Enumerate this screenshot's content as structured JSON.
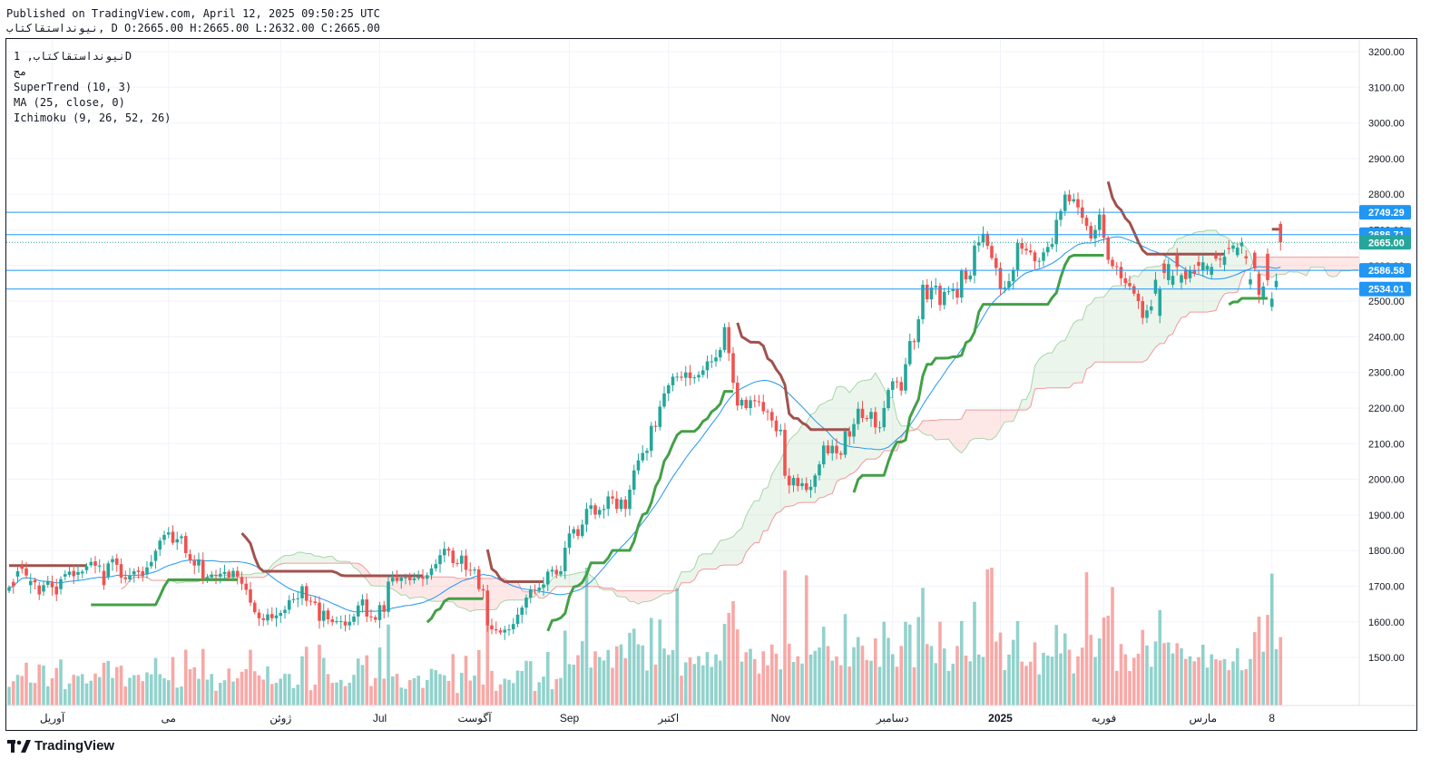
{
  "header": {
    "published_line": "Published on TradingView.com, April 12, 2025 09:50:25 UTC",
    "ohlc_line": "نیونداستقاکتاب, D O:2665.00 H:2665.00 L:2632.00 C:2665.00"
  },
  "legend": {
    "symbol_line": "نیونداستقاکتاب, 1D",
    "exchange": "مج",
    "indicator_1": "SuperTrend (10, 3)",
    "indicator_2": "MA (25, close, 0)",
    "indicator_3": "Ichimoku (9, 26, 52, 26)"
  },
  "brand": {
    "name": "TradingView"
  },
  "colors": {
    "up": "#26a69a",
    "down": "#ef5350",
    "supertrend_up": "#43a047",
    "supertrend_down": "#a0524e",
    "ma": "#2196f3",
    "hline": "#2196f3",
    "price_badge": "#26a69a"
  },
  "chart_data": {
    "type": "candlestick",
    "y_axis": {
      "range": [
        1400,
        3260
      ],
      "ticks": [
        1500,
        1600,
        1700,
        1800,
        1900,
        2000,
        2100,
        2200,
        2300,
        2400,
        2500,
        2600,
        2700,
        2800,
        2900,
        3000,
        3100,
        3200
      ],
      "tick_labels": [
        "1500.00",
        "1600.00",
        "1700.00",
        "1800.00",
        "1900.00",
        "2000.00",
        "2100.00",
        "2200.00",
        "2300.00",
        "2400.00",
        "2500.00",
        "2600.00",
        "2700.00",
        "2800.00",
        "2900.00",
        "3000.00",
        "3100.00",
        "3200.00"
      ]
    },
    "x_axis": {
      "labels": [
        "آوریل",
        "می",
        "ژوئن",
        "Jul",
        "آگوست",
        "Sep",
        "اکتبر",
        "Nov",
        "دسامبر",
        "2025",
        "فوریه",
        "مارس",
        "8"
      ],
      "label_index": [
        10,
        37,
        63,
        86,
        108,
        130,
        153,
        179,
        205,
        230,
        254,
        277,
        293
      ]
    },
    "horizontal_lines": [
      2749.29,
      2686.71,
      2586.58,
      2534.01
    ],
    "price_labels": [
      {
        "value": 2749.29,
        "text": "2749.29",
        "kind": "line"
      },
      {
        "value": 2686.71,
        "text": "2686.71",
        "kind": "line"
      },
      {
        "value": 2665.0,
        "text": "2665.00",
        "kind": "last"
      },
      {
        "value": 2586.58,
        "text": "2586.58",
        "kind": "line"
      },
      {
        "value": 2534.01,
        "text": "2534.01",
        "kind": "line"
      }
    ],
    "last_price": 2665.0,
    "bars": 300,
    "closes": [
      1697,
      1700,
      1742,
      1749,
      1730,
      1715,
      1711,
      1677,
      1703,
      1713,
      1697,
      1677,
      1720,
      1734,
      1741,
      1728,
      1740,
      1741,
      1756,
      1768,
      1757,
      1758,
      1703,
      1764,
      1776,
      1760,
      1724,
      1720,
      1730,
      1742,
      1740,
      1728,
      1753,
      1768,
      1799,
      1828,
      1844,
      1851,
      1822,
      1832,
      1840,
      1793,
      1773,
      1758,
      1775,
      1722,
      1726,
      1732,
      1729,
      1735,
      1740,
      1725,
      1743,
      1727,
      1707,
      1690,
      1654,
      1627,
      1610,
      1605,
      1621,
      1610,
      1618,
      1625,
      1634,
      1661,
      1664,
      1666,
      1700,
      1659,
      1657,
      1653,
      1603,
      1631,
      1607,
      1599,
      1602,
      1602,
      1590,
      1600,
      1615,
      1646,
      1663,
      1615,
      1613,
      1606,
      1647,
      1628,
      1713,
      1724,
      1715,
      1724,
      1725,
      1717,
      1722,
      1725,
      1721,
      1731,
      1750,
      1762,
      1787,
      1805,
      1800,
      1765,
      1763,
      1786,
      1746,
      1744,
      1747,
      1692,
      1688,
      1590,
      1579,
      1576,
      1570,
      1578,
      1579,
      1594,
      1620,
      1640,
      1668,
      1690,
      1689,
      1696,
      1705,
      1741,
      1746,
      1733,
      1742,
      1808,
      1848,
      1860,
      1841,
      1873,
      1917,
      1927,
      1901,
      1914,
      1917,
      1952,
      1946,
      1917,
      1943,
      1917,
      1971,
      2025,
      2053,
      2074,
      2080,
      2150,
      2147,
      2204,
      2241,
      2264,
      2288,
      2288,
      2285,
      2300,
      2284,
      2286,
      2293,
      2306,
      2331,
      2331,
      2342,
      2363,
      2427,
      2354,
      2271,
      2207,
      2223,
      2200,
      2222,
      2219,
      2217,
      2191,
      2189,
      2165,
      2135,
      2139,
      2010,
      1983,
      2004,
      1981,
      1989,
      1970,
      1979,
      2011,
      2042,
      2095,
      2073,
      2094,
      2073,
      2069,
      2135,
      2120,
      2155,
      2198,
      2172,
      2170,
      2189,
      2146,
      2146,
      2200,
      2251,
      2275,
      2273,
      2249,
      2323,
      2388,
      2385,
      2449,
      2546,
      2505,
      2538,
      2543,
      2489,
      2526,
      2528,
      2534,
      2510,
      2585,
      2561,
      2572,
      2656,
      2665,
      2689,
      2655,
      2621,
      2593,
      2535,
      2538,
      2556,
      2588,
      2663,
      2647,
      2642,
      2637,
      2612,
      2613,
      2637,
      2652,
      2660,
      2728,
      2753,
      2799,
      2780,
      2786,
      2763,
      2734,
      2711,
      2676,
      2700,
      2743,
      2678,
      2616,
      2598,
      2596,
      2564,
      2551,
      2542,
      2521,
      2500,
      2453,
      2474,
      2485,
      2560,
      2534,
      2579,
      2604,
      2571,
      2596,
      2573,
      2562,
      2587,
      2577,
      2599,
      2609,
      2599,
      2596,
      2619,
      2616,
      2625,
      2646,
      2656,
      2650,
      2664,
      2620,
      2561,
      2592,
      2518,
      2541,
      2559,
      2507,
      2557,
      2665
    ],
    "open_offsets": [
      -10,
      12,
      -15,
      8,
      20,
      -12,
      6,
      25,
      -18,
      -9,
      14,
      22,
      -28,
      -7,
      -9,
      15,
      -8,
      -5,
      -11,
      -9,
      13,
      -3,
      40,
      -37,
      -9,
      18,
      38,
      5,
      -11,
      -9,
      4,
      14,
      -20,
      -12,
      -28,
      -25,
      -14,
      -6,
      31,
      -9,
      -5,
      48,
      17,
      14,
      -17,
      51,
      -5,
      -7,
      3,
      -8,
      -6,
      16,
      -17,
      16,
      19,
      17,
      37,
      27,
      16,
      5,
      -17,
      12,
      -8,
      -8,
      -9,
      -27,
      -3,
      -2,
      -34,
      41,
      2,
      4,
      51,
      -28,
      25,
      8,
      -3,
      -1,
      11,
      -10,
      -15,
      -31,
      -17,
      48,
      2,
      7,
      -42,
      19,
      -85,
      -11,
      9,
      -9,
      -2,
      8,
      -5,
      -3,
      5,
      -10,
      -19,
      -12,
      -25,
      -18,
      5,
      35,
      2,
      -23,
      40,
      2,
      -3,
      55,
      4,
      98,
      11,
      3,
      6,
      -8,
      -1,
      -15,
      -26,
      -20,
      -28,
      -22,
      1,
      -7,
      -9,
      -36,
      -5,
      13,
      -9,
      -66,
      -40,
      -12,
      19,
      -32,
      -44,
      -10,
      26,
      -13,
      -3,
      -35,
      6,
      29,
      -26,
      26,
      -54,
      -54,
      -28,
      -21,
      -6,
      -70,
      3,
      -57,
      -37,
      -23,
      -24,
      0,
      3,
      -15,
      16,
      -2,
      -7,
      -13,
      -25,
      0,
      -11,
      -21,
      -64,
      73,
      83,
      64,
      -16,
      23,
      -22,
      3,
      2,
      26,
      2,
      24,
      30,
      -4,
      129,
      27,
      -21,
      23,
      -8,
      19,
      -9,
      -32,
      -31,
      -53,
      22,
      -21,
      21,
      4,
      -66,
      15,
      -35,
      -43,
      26,
      2,
      -19,
      43,
      0,
      -54,
      -51,
      -24,
      2,
      24,
      -74,
      -65,
      3,
      -64,
      -97,
      41,
      -33,
      -5,
      54,
      -37,
      -2,
      -6,
      24,
      -75,
      24,
      -11,
      -84,
      -9,
      -24,
      34,
      34,
      28,
      58,
      -3,
      -18,
      -32,
      -75,
      16,
      5,
      5,
      25,
      -1,
      -24,
      -15,
      -8,
      -68,
      -25,
      -46,
      19,
      -6,
      23,
      29,
      23,
      35,
      -24,
      -43,
      65,
      62,
      18,
      2,
      32,
      13,
      9,
      21,
      21,
      47,
      -21,
      -11,
      -39,
      -75,
      26,
      -45,
      -25,
      33,
      -21,
      25,
      -23,
      11,
      11,
      -22,
      -10,
      -22,
      10,
      3,
      -23,
      3,
      -9,
      -21,
      -10,
      6,
      -14,
      44,
      59,
      -31,
      74,
      -23,
      -18,
      52,
      -50,
      -108
    ],
    "volume_scale_max": 100
  }
}
